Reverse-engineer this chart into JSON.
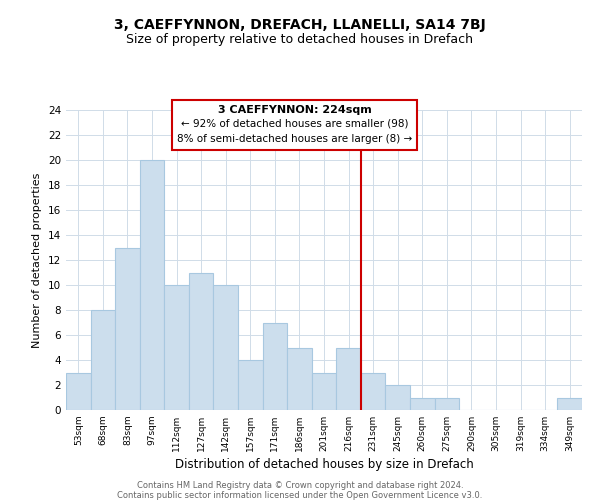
{
  "title": "3, CAEFFYNNON, DREFACH, LLANELLI, SA14 7BJ",
  "subtitle": "Size of property relative to detached houses in Drefach",
  "xlabel": "Distribution of detached houses by size in Drefach",
  "ylabel": "Number of detached properties",
  "bar_labels": [
    "53sqm",
    "68sqm",
    "83sqm",
    "97sqm",
    "112sqm",
    "127sqm",
    "142sqm",
    "157sqm",
    "171sqm",
    "186sqm",
    "201sqm",
    "216sqm",
    "231sqm",
    "245sqm",
    "260sqm",
    "275sqm",
    "290sqm",
    "305sqm",
    "319sqm",
    "334sqm",
    "349sqm"
  ],
  "bar_values": [
    3,
    8,
    13,
    20,
    10,
    11,
    10,
    4,
    7,
    5,
    3,
    5,
    3,
    2,
    1,
    1,
    0,
    0,
    0,
    0,
    1
  ],
  "bar_color": "#ccdeed",
  "bar_edge_color": "#a8c8e0",
  "vline_x": 11.5,
  "vline_color": "#cc0000",
  "annotation_title": "3 CAEFFYNNON: 224sqm",
  "annotation_line1": "← 92% of detached houses are smaller (98)",
  "annotation_line2": "8% of semi-detached houses are larger (8) →",
  "annotation_box_color": "#ffffff",
  "annotation_box_edge": "#cc0000",
  "ylim": [
    0,
    24
  ],
  "yticks": [
    0,
    2,
    4,
    6,
    8,
    10,
    12,
    14,
    16,
    18,
    20,
    22,
    24
  ],
  "footer1": "Contains HM Land Registry data © Crown copyright and database right 2024.",
  "footer2": "Contains public sector information licensed under the Open Government Licence v3.0.",
  "plot_bg_color": "#ffffff",
  "fig_bg_color": "#ffffff",
  "grid_color": "#d0dce8",
  "title_fontsize": 10,
  "subtitle_fontsize": 9
}
